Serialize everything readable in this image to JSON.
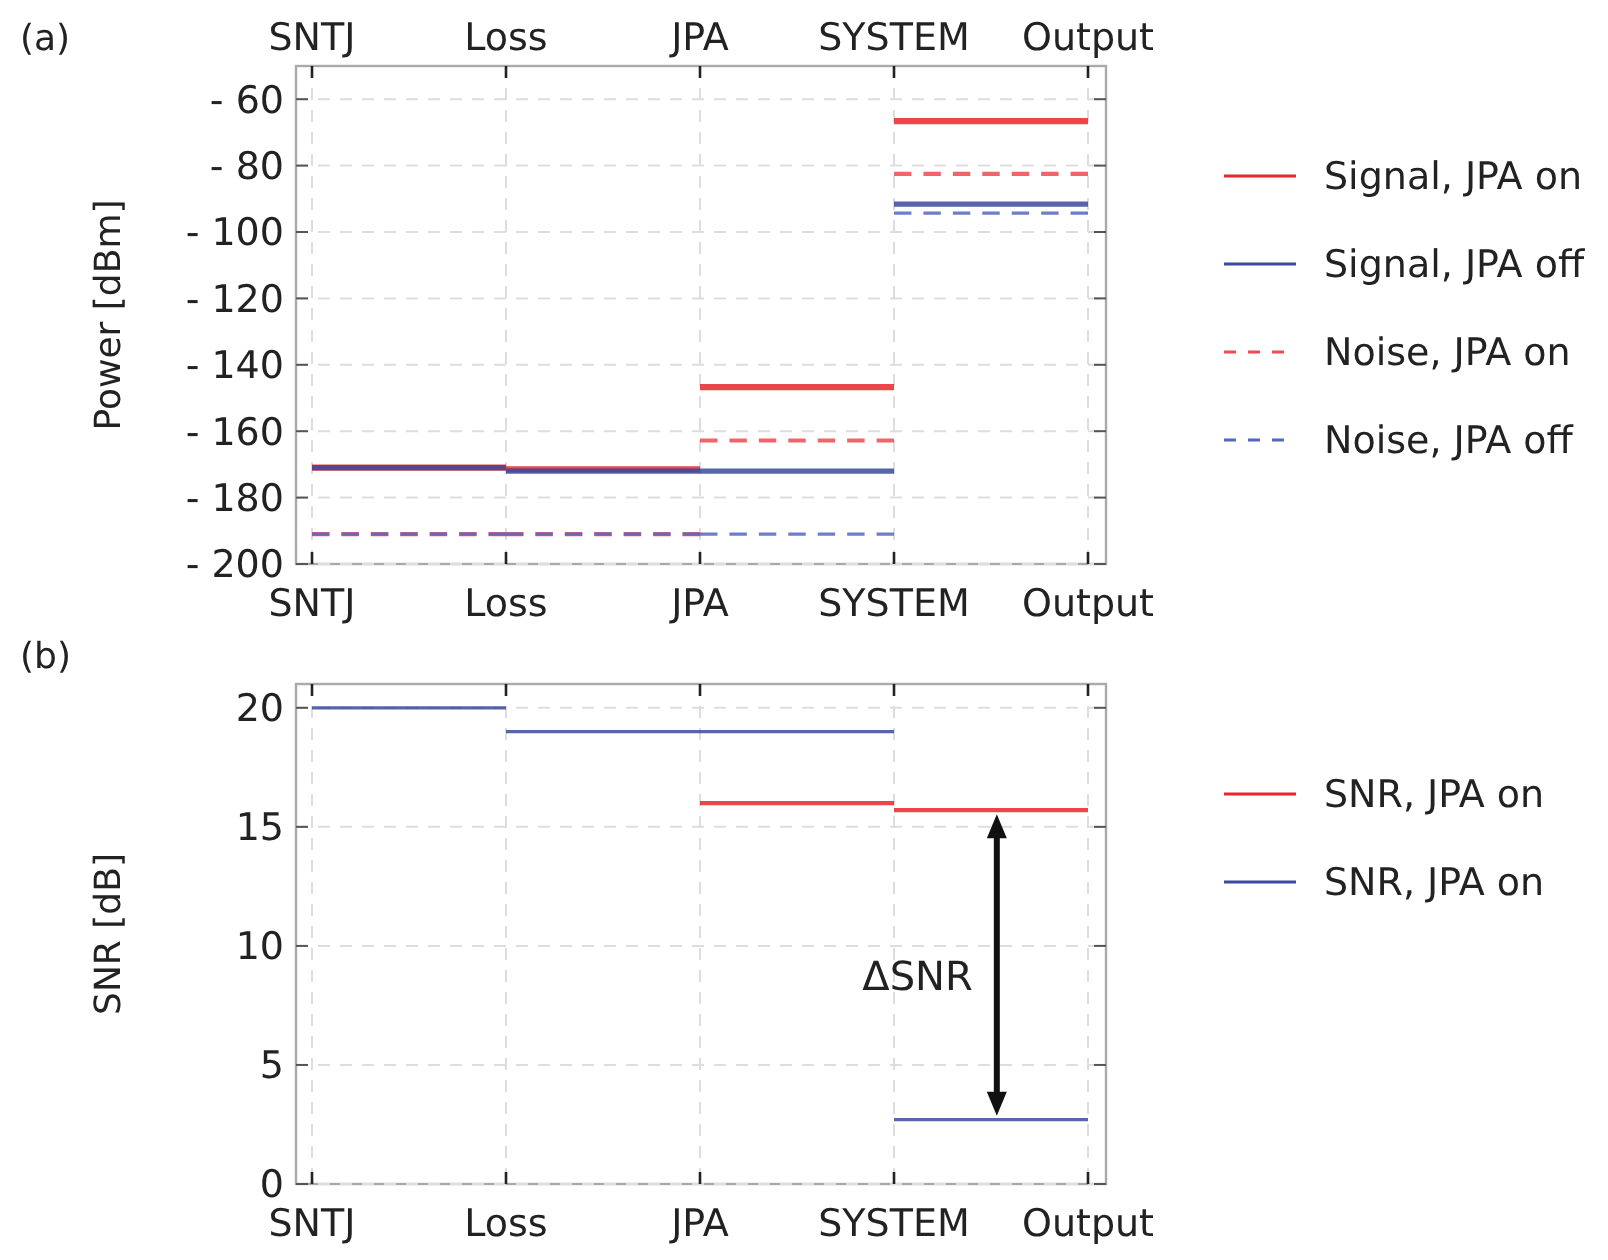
{
  "chart_data": [
    {
      "type": "step",
      "title": "(a)",
      "ylabel": "Power [dBm]",
      "categories": [
        "SNTJ",
        "Loss",
        "JPA",
        "SYSTEM",
        "Output"
      ],
      "ylim": [
        -200,
        -50
      ],
      "yticks": [
        {
          "value": -60,
          "label": "- 60"
        },
        {
          "value": -80,
          "label": "- 80"
        },
        {
          "value": -100,
          "label": "- 100"
        },
        {
          "value": -120,
          "label": "- 120"
        },
        {
          "value": -140,
          "label": "- 140"
        },
        {
          "value": -160,
          "label": "- 160"
        },
        {
          "value": -180,
          "label": "- 180"
        },
        {
          "value": -200,
          "label": "- 200"
        }
      ],
      "grid": true,
      "legend": "right",
      "series": [
        {
          "name": "Signal, JPA on",
          "color": "#e8262a",
          "line_style": "solid",
          "values": [
            -171,
            -171,
            -171.5,
            -146.7,
            -66.6
          ]
        },
        {
          "name": "Signal, JPA off",
          "color": "#3a4a9c",
          "line_style": "solid",
          "values": [
            -171,
            -171,
            -172,
            -172,
            -91.6
          ]
        },
        {
          "name": "Noise, JPA on",
          "color": "#ee4a50",
          "line_style": "dashed",
          "values": [
            -191,
            -191,
            -191,
            -162.8,
            -82.5
          ]
        },
        {
          "name": "Noise, JPA off",
          "color": "#5566c0",
          "line_style": "dashed",
          "values": [
            -191,
            -191,
            -191,
            -191,
            -94.3
          ]
        }
      ]
    },
    {
      "type": "step",
      "title": "(b)",
      "ylabel": "SNR [dB]",
      "categories": [
        "SNTJ",
        "Loss",
        "JPA",
        "SYSTEM",
        "Output"
      ],
      "ylim": [
        0,
        21
      ],
      "yticks": [
        0,
        5,
        10,
        15,
        20
      ],
      "grid": true,
      "legend": "right",
      "annotations": [
        "ΔSNR"
      ],
      "series": [
        {
          "name": "SNR, JPA on",
          "color": "#e8262a",
          "line_style": "solid",
          "values": [
            null,
            null,
            16.0,
            16.0,
            15.7
          ]
        },
        {
          "name": "SNR, JPA on",
          "color": "#3a4a9c",
          "line_style": "solid",
          "values": [
            20,
            20,
            19,
            19,
            2.7
          ]
        }
      ]
    }
  ]
}
